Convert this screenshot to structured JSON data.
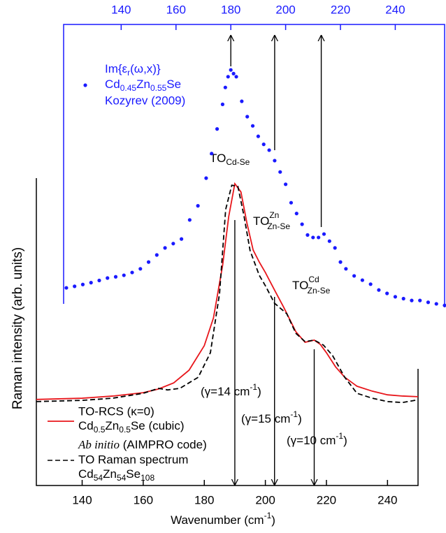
{
  "chart_data": {
    "type": "line",
    "xlabel": [
      "Wavenumber (cm",
      "-1",
      ")"
    ],
    "ylabel": "Raman intensity (arb. units)",
    "xlim": [
      125,
      250
    ],
    "xticks": [
      140,
      160,
      180,
      200,
      220,
      240
    ],
    "x2lim": [
      119,
      258
    ],
    "x2ticks": [
      140,
      160,
      180,
      200,
      220,
      240
    ],
    "ylim": [
      0,
      150
    ],
    "series": [
      {
        "name": "TO-RCS (κ=0)",
        "name_detail": [
          "Cd",
          "0.5",
          "Zn",
          "0.5",
          "Se (cubic)"
        ],
        "color": "#e8161b",
        "style": "solid",
        "x": [
          125,
          140,
          150,
          160,
          165,
          170,
          175,
          180,
          183,
          186,
          188,
          190,
          192,
          194,
          196,
          198,
          200,
          203,
          206,
          210,
          213,
          216,
          218,
          220,
          223,
          226,
          230,
          235,
          240,
          245,
          250
        ],
        "values": [
          28.0,
          28.4,
          29.1,
          30.2,
          31.4,
          33.4,
          37.5,
          45.5,
          54.5,
          71.6,
          87.5,
          98.2,
          95.5,
          85.2,
          76.6,
          72.7,
          69.3,
          63.6,
          58.0,
          50.0,
          46.6,
          47.3,
          45.9,
          43.2,
          38.6,
          35.2,
          32.3,
          30.7,
          29.5,
          29.1,
          28.9
        ]
      },
      {
        "name": "TO Raman spectrum",
        "name_head": [
          "Ab initio",
          " (AIMPRO code)"
        ],
        "name_detail": [
          "Cd",
          "54",
          "Zn",
          "54",
          "Se",
          "108"
        ],
        "color": "#000000",
        "style": "dashed",
        "x": [
          125,
          140,
          150,
          160,
          165,
          168,
          172,
          178,
          182,
          185,
          187,
          189,
          191,
          193,
          195,
          198,
          200,
          203,
          207,
          210,
          213,
          216,
          219,
          222,
          226,
          230,
          235,
          240,
          245,
          250
        ],
        "values": [
          27.3,
          27.7,
          28.4,
          30.0,
          31.6,
          31.1,
          31.6,
          35.2,
          43.2,
          62.5,
          89.8,
          97.7,
          97.3,
          87.7,
          76.4,
          68.4,
          65.0,
          59.3,
          55.9,
          49.5,
          46.8,
          47.3,
          45.7,
          42.3,
          35.2,
          30.0,
          28.4,
          27.3,
          27.0,
          27.9
        ]
      },
      {
        "name": [
          "Im{ε",
          "r",
          "(ω,x)}"
        ],
        "name_detail": [
          "Cd",
          "0.45",
          "Zn",
          "0.55",
          "Se"
        ],
        "name_source": "Kozyrev (2009)",
        "color": "#1a1aff",
        "style": "dots",
        "axis": "x2",
        "x": [
          120,
          123,
          126,
          129,
          132,
          135,
          138,
          141,
          144,
          147,
          150,
          153,
          156,
          159,
          162,
          165,
          168,
          171,
          173,
          175,
          177,
          178,
          179,
          180,
          181,
          182,
          184,
          186,
          188,
          190,
          192,
          194,
          196,
          198,
          200,
          202,
          204,
          206,
          208,
          210,
          212,
          214,
          216,
          218,
          220,
          222,
          225,
          228,
          231,
          234,
          237,
          240,
          243,
          246,
          249,
          252,
          255,
          258
        ],
        "values": [
          64.3,
          64.8,
          65.4,
          66.0,
          66.7,
          67.5,
          67.9,
          68.4,
          69.3,
          70.5,
          72.7,
          75.0,
          77.3,
          78.7,
          80.2,
          86.4,
          91.0,
          100.0,
          108.0,
          116.0,
          124.0,
          129.5,
          133.0,
          135.2,
          134.0,
          133.0,
          125.0,
          120.0,
          117.0,
          113.6,
          111.0,
          109.1,
          105.7,
          102.0,
          98.0,
          92.0,
          88.5,
          85.0,
          81.5,
          80.7,
          80.7,
          81.8,
          79.5,
          77.3,
          72.7,
          70.5,
          68.2,
          66.8,
          65.5,
          63.6,
          62.5,
          61.4,
          60.8,
          60.2,
          60.2,
          59.6,
          59.1,
          58.6
        ]
      }
    ],
    "mode_labels": [
      [
        "TO",
        "Cd-Se"
      ],
      [
        "TO",
        "Zn",
        "Zn-Se"
      ],
      [
        "TO",
        "Cd",
        "Zn-Se"
      ]
    ],
    "arrows_bottom": [
      190,
      203,
      216
    ],
    "arrows_top": [
      180,
      196,
      213
    ],
    "gamma_labels": [
      [
        "(γ=14 cm",
        "-1",
        ")"
      ],
      [
        "(γ=15 cm",
        "-1",
        ")"
      ],
      [
        "(γ=10 cm",
        "-1",
        ")"
      ]
    ]
  }
}
